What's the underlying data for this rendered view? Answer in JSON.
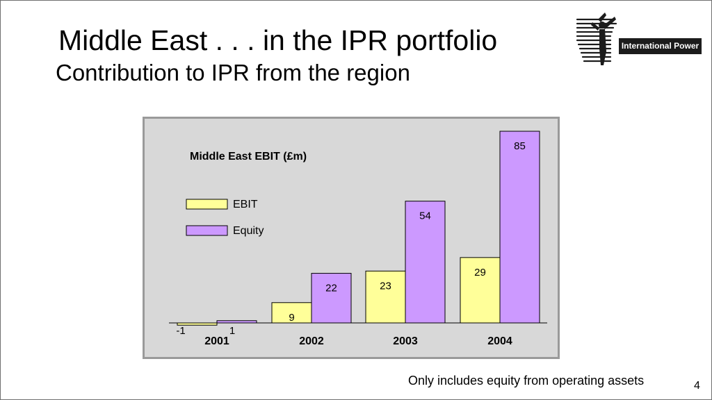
{
  "slide": {
    "title": "Middle East . . . in the IPR portfolio",
    "subtitle": "Contribution to IPR from the region",
    "logo_text": "International Power",
    "footnote": "Only includes equity from operating assets",
    "page_number": "4"
  },
  "colors": {
    "plot_bg": "#d8d8d8",
    "ebit": "#ffff99",
    "equity": "#cc99ff",
    "outline": "#000000"
  },
  "chart_data": {
    "type": "bar",
    "title": "Middle East EBIT (£m)",
    "categories": [
      "2001",
      "2002",
      "2003",
      "2004"
    ],
    "series": [
      {
        "name": "EBIT",
        "values": [
          -1,
          9,
          23,
          29
        ],
        "labels": [
          "-1",
          "9",
          "23",
          "29"
        ]
      },
      {
        "name": "Equity",
        "values": [
          1,
          22,
          54,
          85
        ],
        "labels": [
          "1",
          "22",
          "54",
          "85"
        ]
      }
    ],
    "ylim": [
      -1,
      85
    ],
    "grid": false,
    "legend": "top-left",
    "xlabel": "",
    "ylabel": ""
  }
}
